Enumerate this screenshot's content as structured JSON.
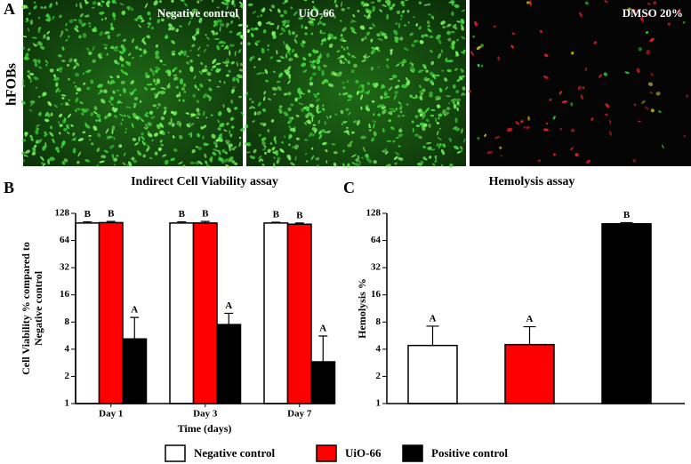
{
  "panel_a": {
    "label": "A",
    "row_label": "hFOBs",
    "images": [
      "Negative control",
      "UiO-66",
      "DMSO 20%"
    ]
  },
  "chart_data": [
    {
      "type": "bar",
      "panel": "B",
      "title": "Indirect Cell Viability assay",
      "x_label": "Time (days)",
      "y_label": [
        "Cell Viability % compared to",
        "Negative control"
      ],
      "categories": [
        "Day 1",
        "Day 3",
        "Day 7"
      ],
      "log_scale": true,
      "ylim": [
        1,
        128
      ],
      "yticks": [
        1,
        2,
        4,
        8,
        16,
        32,
        64,
        128
      ],
      "series": [
        {
          "name": "Negative control",
          "color": "#ffffff",
          "values": [
            100,
            100,
            100
          ],
          "errors": [
            3,
            3,
            2
          ],
          "letters": [
            "B",
            "B",
            "B"
          ]
        },
        {
          "name": "UiO-66",
          "color": "#ff0000",
          "values": [
            101,
            100,
            97
          ],
          "errors": [
            3,
            4,
            3
          ],
          "letters": [
            "B",
            "B",
            "B"
          ]
        },
        {
          "name": "Positive control",
          "color": "#000000",
          "values": [
            5.2,
            7.5,
            2.9
          ],
          "errors": [
            3.8,
            2.5,
            2.7
          ],
          "letters": [
            "A",
            "A",
            "A"
          ]
        }
      ],
      "legend": "bottom"
    },
    {
      "type": "bar",
      "panel": "C",
      "title": "Hemolysis assay",
      "y_label": "Hemolysis %",
      "categories": [
        null,
        null,
        null
      ],
      "log_scale": true,
      "ylim": [
        1,
        128
      ],
      "yticks": [
        1,
        2,
        4,
        8,
        16,
        32,
        64,
        128
      ],
      "values": [
        4.4,
        4.5,
        98
      ],
      "errors": [
        2.8,
        2.6,
        3
      ],
      "colors": [
        "#ffffff",
        "#ff0000",
        "#000000"
      ],
      "letters": [
        "A",
        "A",
        "B"
      ]
    }
  ]
}
